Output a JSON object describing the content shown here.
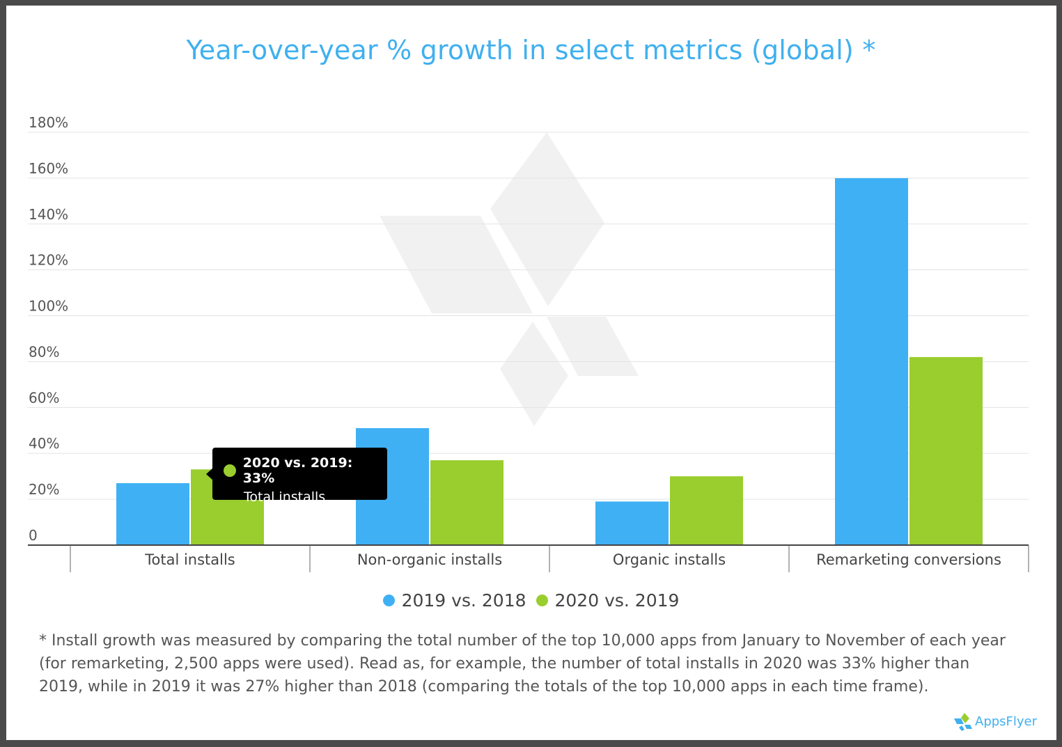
{
  "chart_data": {
    "type": "bar",
    "title": "Year-over-year % growth in select metrics (global) *",
    "categories": [
      "Total installs",
      "Non-organic installs",
      "Organic installs",
      "Remarketing conversions"
    ],
    "series": [
      {
        "name": "2019 vs. 2018",
        "values": [
          27,
          51,
          19,
          160
        ],
        "color": "#3fb0f4"
      },
      {
        "name": "2020 vs. 2019",
        "values": [
          33,
          37,
          30,
          82
        ],
        "color": "#9acd2e"
      }
    ],
    "ylim": [
      0,
      180
    ],
    "yticks": [
      0,
      20,
      40,
      60,
      80,
      100,
      120,
      140,
      160,
      180
    ],
    "ytick_labels": [
      "0",
      "20%",
      "40%",
      "60%",
      "80%",
      "100%",
      "120%",
      "140%",
      "160%",
      "180%"
    ],
    "grid": true,
    "legend_position": "bottom",
    "xlabel": "",
    "ylabel": ""
  },
  "tooltip": {
    "title": "2020 vs. 2019: 33%",
    "subtitle": "Total installs",
    "color": "#9acd2e"
  },
  "footnote": "* Install growth was measured by comparing the total number of the top 10,000 apps from January to November of each year (for remarketing, 2,500 apps were used). Read as, for example, the number of total installs in 2020 was 33% higher than 2019, while in 2019 it was 27% higher than 2018 (comparing the totals of the top 10,000 apps in each time frame).",
  "brand": {
    "name": "AppsFlyer",
    "logo_icon": "appsflyer-logo-icon"
  }
}
